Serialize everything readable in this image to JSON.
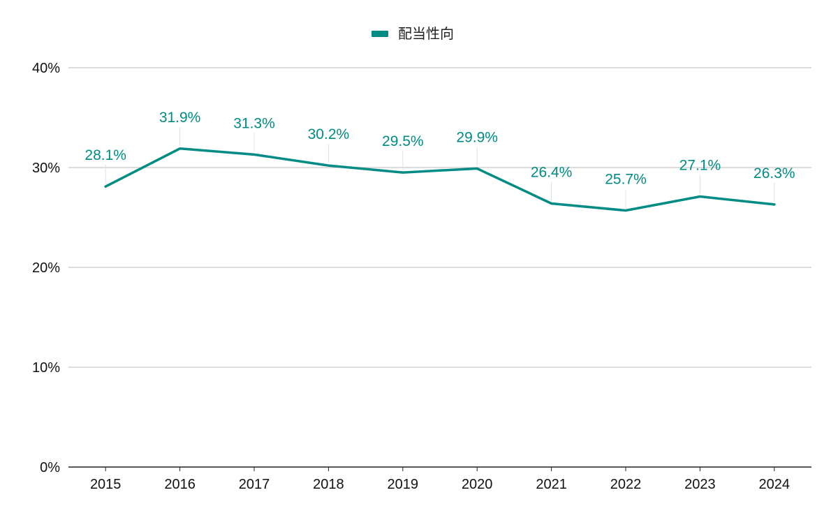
{
  "chart_data": {
    "type": "line",
    "title": "",
    "xlabel": "",
    "ylabel": "",
    "categories": [
      "2015",
      "2016",
      "2017",
      "2018",
      "2019",
      "2020",
      "2021",
      "2022",
      "2023",
      "2024"
    ],
    "series": [
      {
        "name": "配当性向",
        "values": [
          28.1,
          31.9,
          31.3,
          30.2,
          29.5,
          29.9,
          26.4,
          25.7,
          27.1,
          26.3
        ],
        "labels": [
          "28.1%",
          "31.9%",
          "31.3%",
          "30.2%",
          "29.5%",
          "29.9%",
          "26.4%",
          "25.7%",
          "27.1%",
          "26.3%"
        ],
        "color": "#008B84"
      }
    ],
    "ylim": [
      0,
      40
    ],
    "y_ticks": [
      0,
      10,
      20,
      30,
      40
    ],
    "y_tick_labels": [
      "0%",
      "10%",
      "20%",
      "30%",
      "40%"
    ],
    "grid": true,
    "legend_position": "top-center",
    "colors": {
      "grid": "#C8C8C8",
      "axis": "#222222",
      "text": "#111111",
      "leader": "#E0E0E0"
    }
  }
}
